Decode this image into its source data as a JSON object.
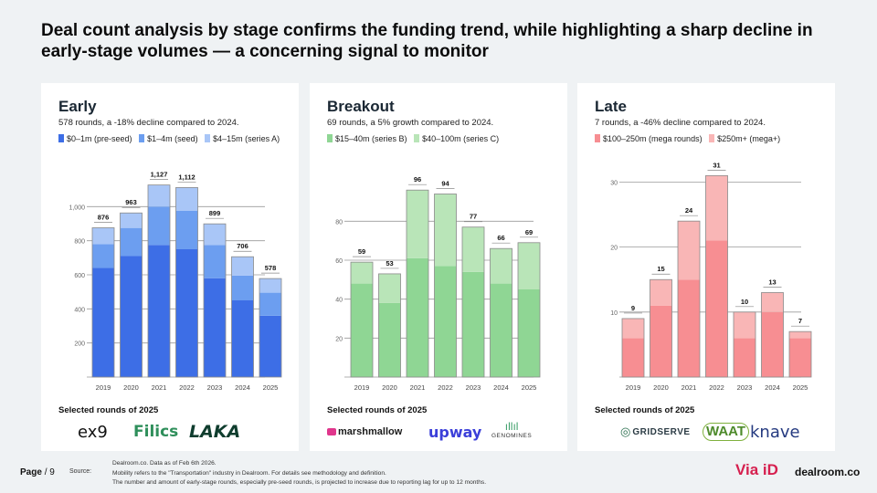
{
  "headline": "Deal count analysis by stage confirms the funding trend, while highlighting a sharp decline in early-stage volumes — a concerning signal to monitor",
  "colors": {
    "early": [
      "#3d6ee6",
      "#6c9ef0",
      "#a9c6f7"
    ],
    "breakout": [
      "#8fd694",
      "#b9e5b8"
    ],
    "late": [
      "#f78e92",
      "#f9b6b6"
    ]
  },
  "panels": [
    {
      "title": "Early",
      "subtitle": "578 rounds, a -18% decline compared to 2024.",
      "selected_title": "Selected rounds of 2025",
      "logos": [
        "ex9",
        "Filics",
        "LAKA"
      ]
    },
    {
      "title": "Breakout",
      "subtitle": "69 rounds, a 5% growth compared to 2024.",
      "selected_title": "Selected rounds of 2025",
      "logos": [
        "marshmallow",
        "upway",
        "GENOMINES"
      ]
    },
    {
      "title": "Late",
      "subtitle": "7 rounds, a -46% decline compared to 2024.",
      "selected_title": "Selected rounds of 2025",
      "logos": [
        "GRIDSERVE",
        "WAAT",
        "knave"
      ]
    }
  ],
  "chart_data": [
    {
      "type": "bar",
      "stacked": true,
      "categories": [
        "2019",
        "2020",
        "2021",
        "2022",
        "2023",
        "2024",
        "2025"
      ],
      "series": [
        {
          "name": "$0–1m (pre-seed)",
          "values": [
            640,
            710,
            775,
            750,
            580,
            450,
            360
          ]
        },
        {
          "name": "$1–4m (seed)",
          "values": [
            140,
            165,
            225,
            225,
            195,
            145,
            135
          ]
        },
        {
          "name": "$4–15m (series A)",
          "values": [
            96,
            88,
            127,
            137,
            124,
            111,
            83
          ]
        }
      ],
      "totals": [
        "876",
        "963",
        "1,127",
        "1,112",
        "899",
        "706",
        "578"
      ],
      "yticks": [
        "200",
        "400",
        "600",
        "800",
        "1,000"
      ],
      "ylim": [
        0,
        1200
      ],
      "grid": true
    },
    {
      "type": "bar",
      "stacked": true,
      "categories": [
        "2019",
        "2020",
        "2021",
        "2022",
        "2023",
        "2024",
        "2025"
      ],
      "series": [
        {
          "name": "$15–40m (series B)",
          "values": [
            48,
            38,
            61,
            57,
            54,
            48,
            45
          ]
        },
        {
          "name": "$40–100m (series C)",
          "values": [
            11,
            15,
            35,
            37,
            23,
            18,
            24
          ]
        }
      ],
      "totals": [
        "59",
        "53",
        "96",
        "94",
        "77",
        "66",
        "69"
      ],
      "yticks": [
        "20",
        "40",
        "60",
        "80"
      ],
      "ylim": [
        0,
        105
      ],
      "grid": true
    },
    {
      "type": "bar",
      "stacked": true,
      "categories": [
        "2019",
        "2020",
        "2021",
        "2022",
        "2023",
        "2024",
        "2025"
      ],
      "series": [
        {
          "name": "$100–250m (mega rounds)",
          "values": [
            6,
            11,
            15,
            21,
            6,
            10,
            6
          ]
        },
        {
          "name": "$250m+ (mega+)",
          "values": [
            3,
            4,
            9,
            10,
            4,
            3,
            1
          ]
        }
      ],
      "totals": [
        "9",
        "15",
        "24",
        "31",
        "10",
        "13",
        "7"
      ],
      "yticks": [
        "10",
        "20",
        "30"
      ],
      "ylim": [
        0,
        34
      ],
      "grid": true
    }
  ],
  "footer": {
    "page_label": "Page",
    "page_number": "/ 9",
    "source_label": "Source:",
    "notes": [
      "Dealroom.co.  Data as of Feb 6th 2026.",
      "Mobility refers to the \"Transportation\" industry in Dealroom. For details see methodology and definition.",
      "The number and amount of early-stage rounds, especially pre-seed rounds, is projected to increase due to reporting lag for up to 12 months."
    ],
    "brand_viaid": "Via iD",
    "brand_dealroom": "dealroom.co"
  }
}
